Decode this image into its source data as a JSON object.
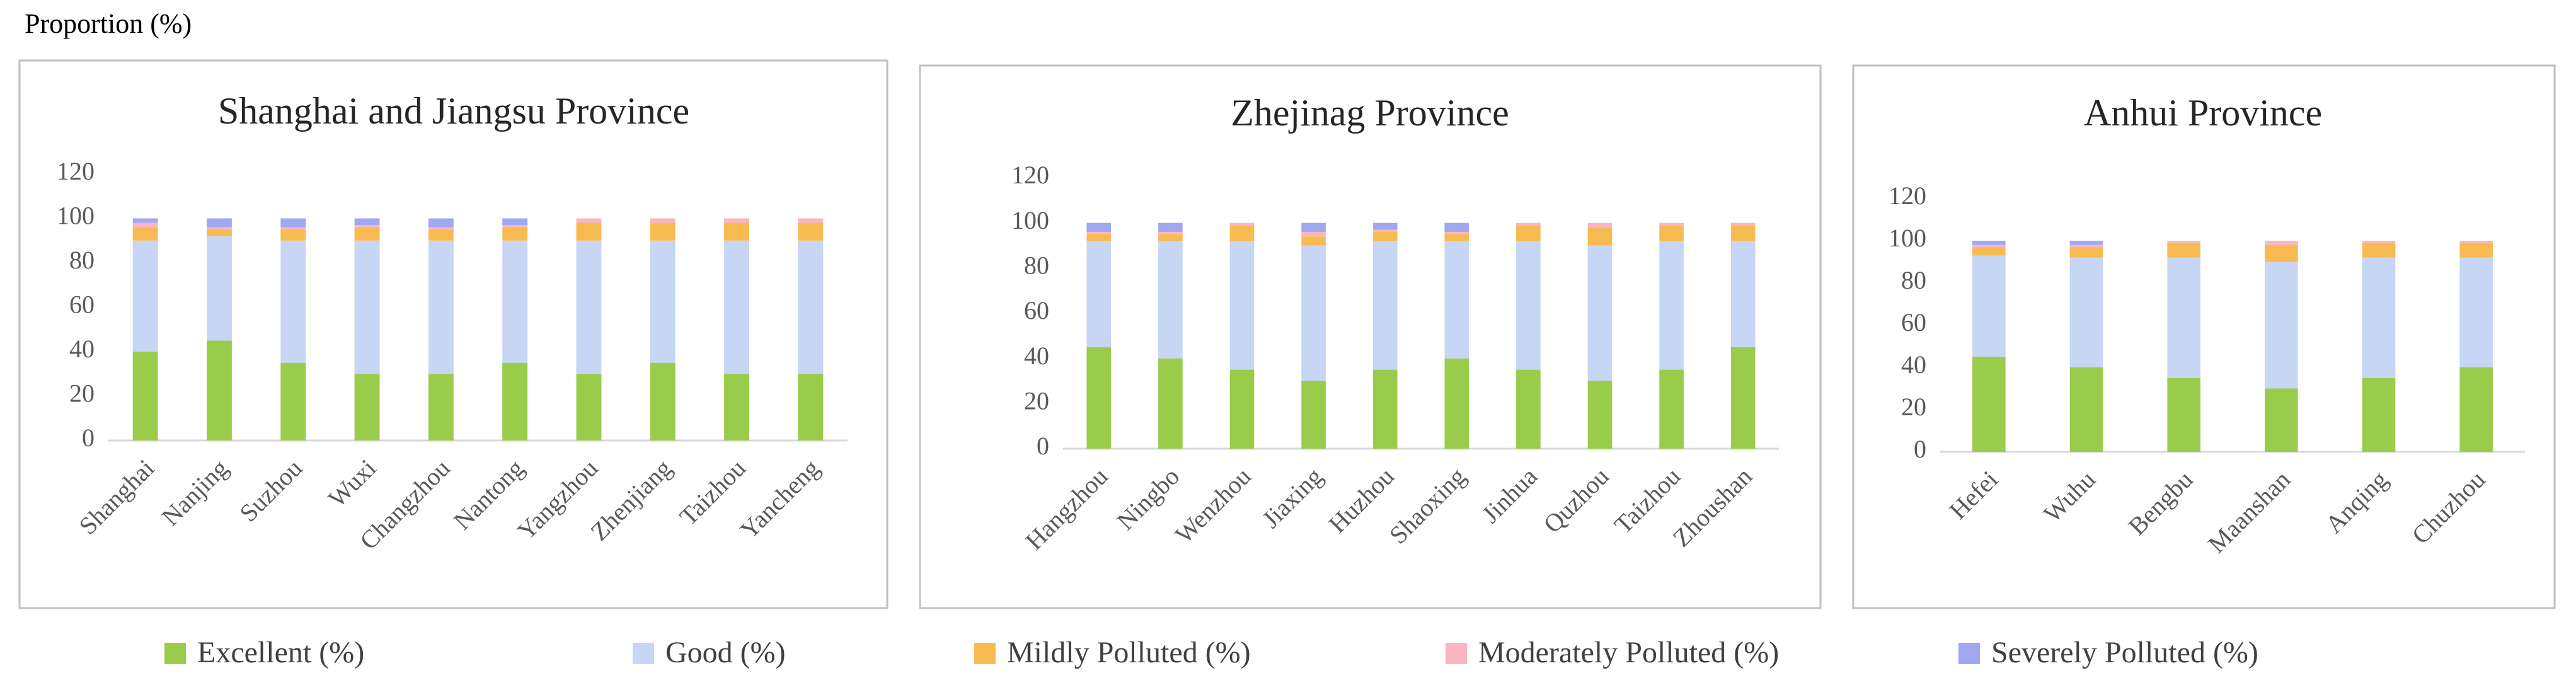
{
  "y_axis_label": "Proportion (%)",
  "legend": [
    {
      "name": "Excellent (%)",
      "color": "#9acc4c"
    },
    {
      "name": "Good (%)",
      "color": "#c6d6f4"
    },
    {
      "name": "Mildly Polluted (%)",
      "color": "#f8bb52"
    },
    {
      "name": "Moderately Polluted (%)",
      "color": "#f9b6c2"
    },
    {
      "name": "Severely Polluted (%)",
      "color": "#a0a8f2"
    }
  ],
  "chart_data": [
    {
      "type": "bar",
      "stacked": true,
      "title": "Shanghai and Jiangsu Province",
      "categories": [
        "Shanghai",
        "Nanjing",
        "Suzhou",
        "Wuxi",
        "Changzhou",
        "Nantong",
        "Yangzhou",
        "Zhenjiang",
        "Taizhou",
        "Yancheng"
      ],
      "series": [
        {
          "values": [
            40,
            45,
            35,
            30,
            30,
            35,
            30,
            35,
            30,
            30
          ]
        },
        {
          "values": [
            50,
            47,
            55,
            60,
            60,
            55,
            60,
            55,
            60,
            60
          ]
        },
        {
          "values": [
            6,
            3,
            5,
            6,
            5,
            6,
            8,
            8,
            8,
            8
          ]
        },
        {
          "values": [
            2,
            1,
            1,
            1,
            1,
            1,
            2,
            2,
            2,
            2
          ]
        },
        {
          "values": [
            2,
            4,
            4,
            3,
            4,
            3,
            0,
            0,
            0,
            0
          ]
        }
      ],
      "ylim": [
        0,
        120
      ],
      "yticks": [
        0,
        20,
        40,
        60,
        80,
        100,
        120
      ]
    },
    {
      "type": "bar",
      "stacked": true,
      "title": "Zhejinag Province",
      "categories": [
        "Hangzhou",
        "Ningbo",
        "Wenzhou",
        "Jiaxing",
        "Huzhou",
        "Shaoxing",
        "Jinhua",
        "Quzhou",
        "Taizhou",
        "Zhoushan"
      ],
      "series": [
        {
          "values": [
            45,
            40,
            35,
            30,
            35,
            40,
            35,
            30,
            35,
            45
          ]
        },
        {
          "values": [
            47,
            52,
            57,
            60,
            57,
            52,
            57,
            60,
            57,
            47
          ]
        },
        {
          "values": [
            3,
            3,
            7,
            4,
            4,
            3,
            7,
            8,
            7,
            7
          ]
        },
        {
          "values": [
            1,
            1,
            1,
            2,
            1,
            1,
            1,
            2,
            1,
            1
          ]
        },
        {
          "values": [
            4,
            4,
            0,
            4,
            3,
            4,
            0,
            0,
            0,
            0
          ]
        }
      ],
      "ylim": [
        0,
        120
      ],
      "yticks": [
        0,
        20,
        40,
        60,
        80,
        100,
        120
      ]
    },
    {
      "type": "bar",
      "stacked": true,
      "title": "Anhui Province",
      "categories": [
        "Hefei",
        "Wuhu",
        "Bengbu",
        "Maanshan",
        "Anqing",
        "Chuzhou"
      ],
      "series": [
        {
          "values": [
            45,
            40,
            35,
            30,
            35,
            40
          ]
        },
        {
          "values": [
            48,
            52,
            57,
            60,
            57,
            52
          ]
        },
        {
          "values": [
            4,
            5,
            7,
            8,
            7,
            7
          ]
        },
        {
          "values": [
            1,
            1,
            1,
            2,
            1,
            1
          ]
        },
        {
          "values": [
            2,
            2,
            0,
            0,
            0,
            0
          ]
        }
      ],
      "ylim": [
        0,
        120
      ],
      "yticks": [
        0,
        20,
        40,
        60,
        80,
        100,
        120
      ]
    }
  ]
}
